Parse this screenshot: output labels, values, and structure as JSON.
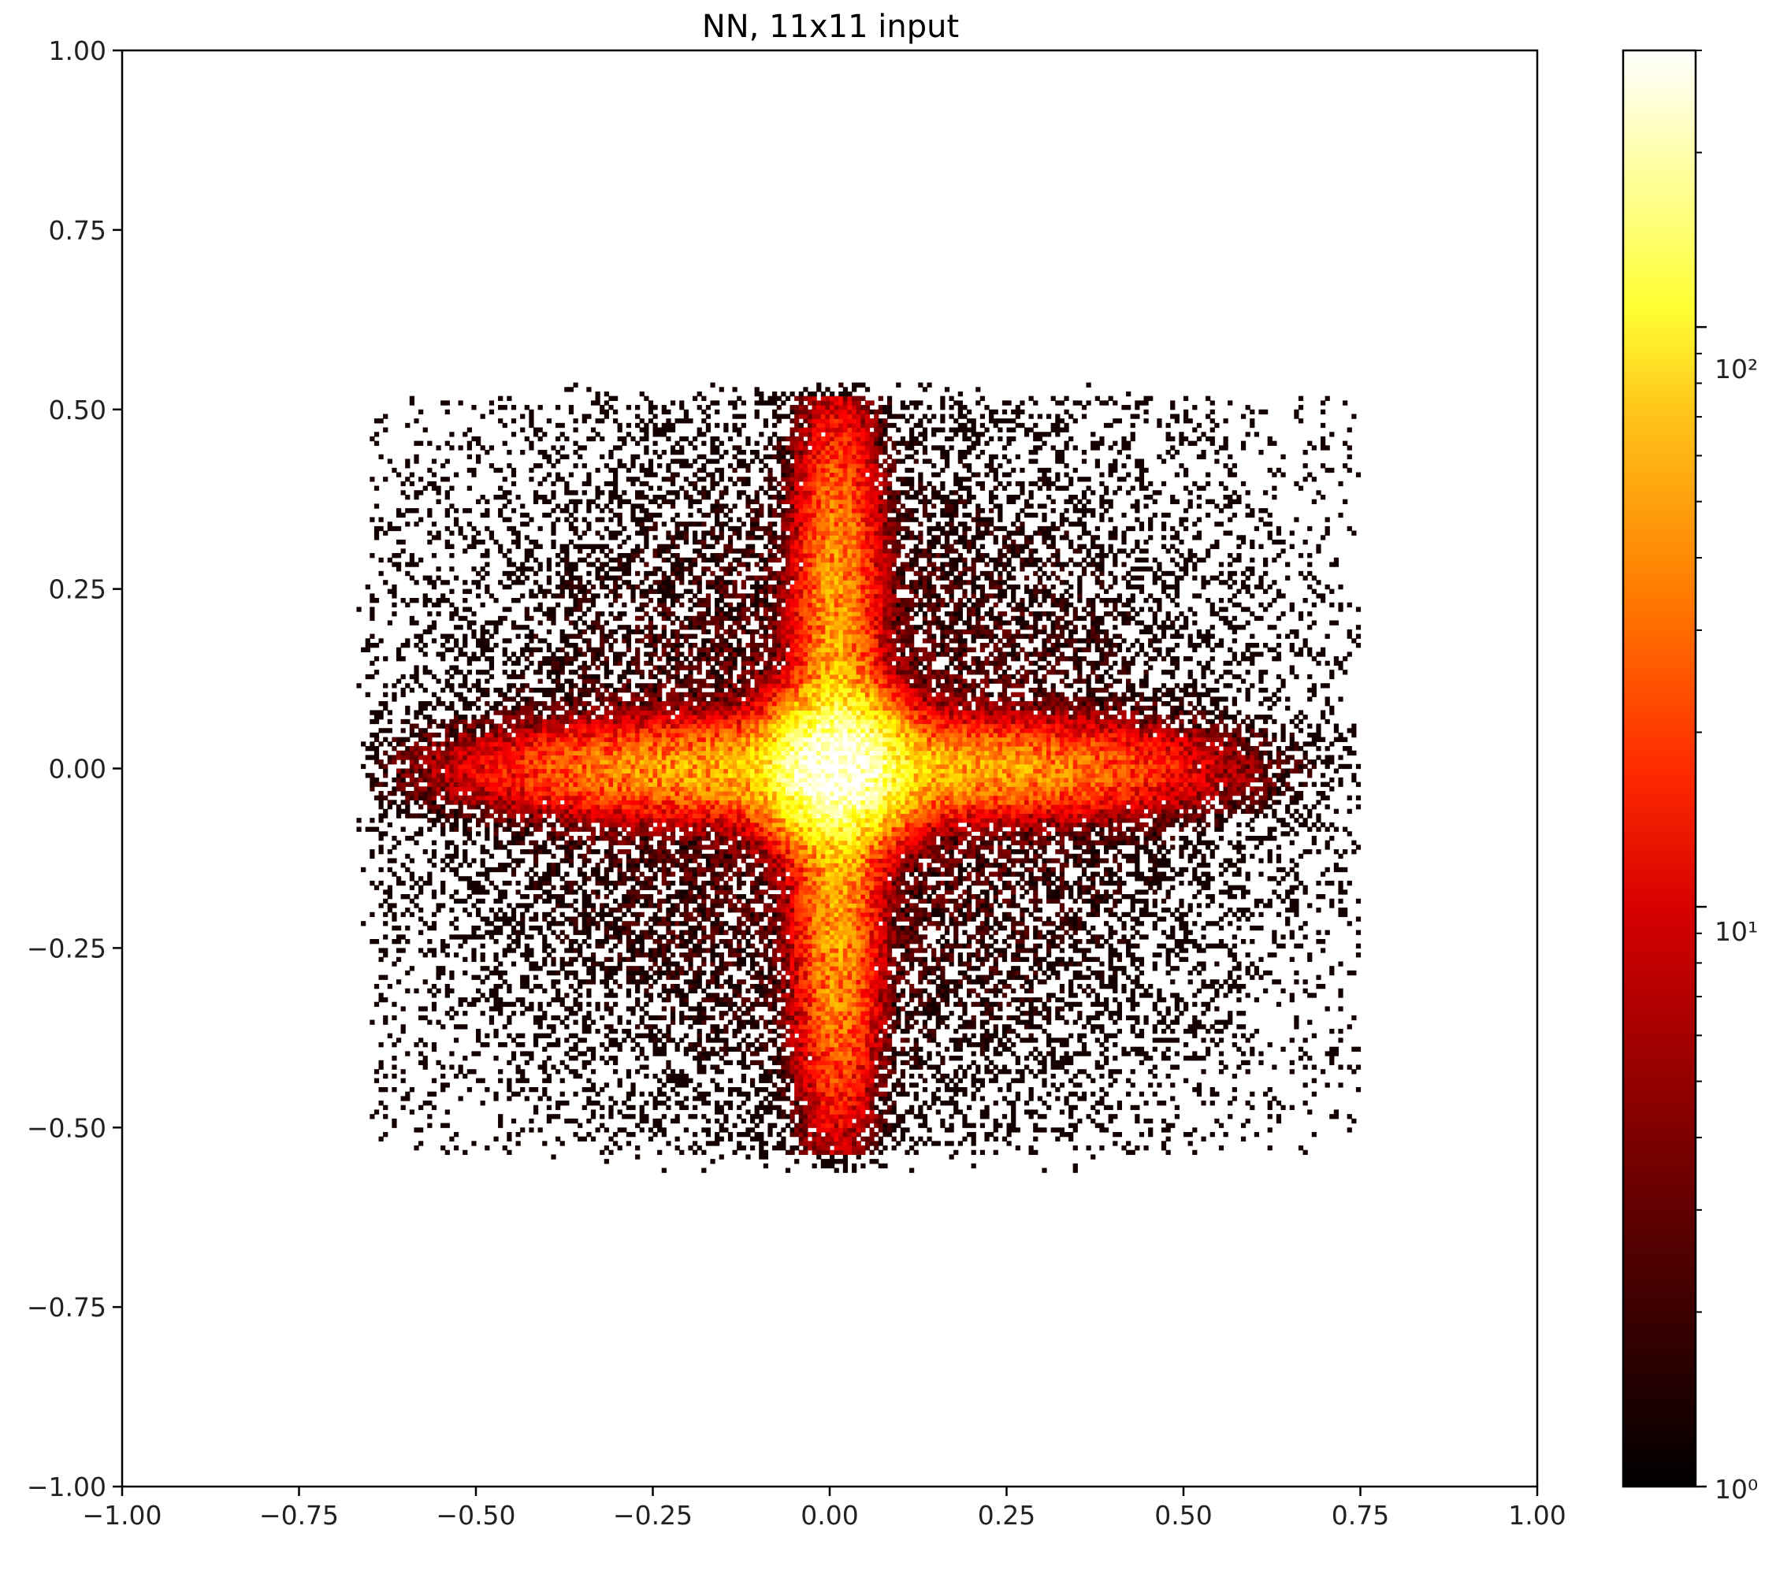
{
  "chart_data": {
    "type": "heatmap",
    "title": "NN, 11x11 input",
    "xlabel": "",
    "ylabel": "",
    "xlim": [
      -1.0,
      1.0
    ],
    "ylim": [
      -1.0,
      1.0
    ],
    "x_ticks": [
      "−1.00",
      "−0.75",
      "−0.50",
      "−0.25",
      "0.00",
      "0.25",
      "0.50",
      "0.75",
      "1.00"
    ],
    "y_ticks": [
      "1.00",
      "0.75",
      "0.50",
      "0.25",
      "0.00",
      "−0.25",
      "−0.50",
      "−0.75",
      "−1.00"
    ],
    "grid": false,
    "colormap": "hot",
    "color_scale": "log",
    "colorbar": {
      "position": "right",
      "range": [
        1,
        300
      ],
      "labels": [
        "10²",
        "10¹",
        "10⁰"
      ],
      "major_values": [
        100,
        10,
        1
      ]
    },
    "distribution": {
      "shape": "four-armed cross",
      "center": [
        0.01,
        0.0
      ],
      "horizontal_arm_x_extent": [
        -0.65,
        0.75
      ],
      "vertical_arm_y_extent": [
        -0.54,
        0.52
      ],
      "peak_count": 300,
      "background_count": 0
    }
  }
}
